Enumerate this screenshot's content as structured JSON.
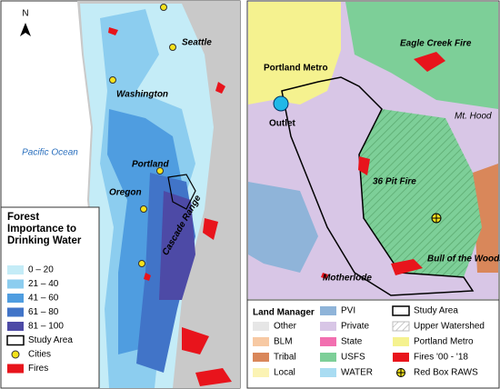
{
  "left_map": {
    "north": "N",
    "labels": {
      "seattle": "Seattle",
      "washington": "Washington",
      "ocean": "Pacific Ocean",
      "portland": "Portland",
      "oregon": "Oregon",
      "range": "Cascade Range"
    },
    "legend": {
      "title": "Forest Importance to Drinking Water",
      "items": [
        {
          "label": "0 – 20",
          "color": "#c4ecf7",
          "style": "swatch"
        },
        {
          "label": "21 – 40",
          "color": "#8ccdef",
          "style": "swatch"
        },
        {
          "label": "41 – 60",
          "color": "#4f9de0",
          "style": "swatch"
        },
        {
          "label": "61 – 80",
          "color": "#4174c8",
          "style": "swatch"
        },
        {
          "label": "81 – 100",
          "color": "#4d4aa6",
          "style": "swatch"
        },
        {
          "label": "Study Area",
          "color": "#000000",
          "style": "outline"
        },
        {
          "label": "Cities",
          "color": "#f5e21b",
          "style": "dot"
        },
        {
          "label": "Fires",
          "color": "#e8141c",
          "style": "swatch"
        }
      ]
    }
  },
  "right_map": {
    "labels": {
      "metro": "Portland Metro",
      "eagle": "Eagle Creek Fire",
      "hood": "Mt. Hood",
      "outlet": "Outlet",
      "pit": "36 Pit Fire",
      "bull": "Bull of the Woods",
      "mother": "Motherlode"
    },
    "legend": {
      "title": "Land Manager",
      "columns": [
        [
          {
            "label": "Other",
            "color": "#e6e6e6",
            "style": "swatch"
          },
          {
            "label": "BLM",
            "color": "#f7c9a3",
            "style": "swatch"
          },
          {
            "label": "Tribal",
            "color": "#d9875a",
            "style": "swatch"
          },
          {
            "label": "Local",
            "color": "#fbf3b4",
            "style": "swatch"
          }
        ],
        [
          {
            "label": "PVI",
            "color": "#8fb4d9",
            "style": "swatch"
          },
          {
            "label": "Private",
            "color": "#d8c6e6",
            "style": "swatch"
          },
          {
            "label": "State",
            "color": "#f26fb0",
            "style": "swatch"
          },
          {
            "label": "USFS",
            "color": "#7dcf98",
            "style": "swatch"
          },
          {
            "label": "WATER",
            "color": "#a9dcf2",
            "style": "swatch"
          }
        ],
        [
          {
            "label": "Study Area",
            "color": "#000000",
            "style": "outline"
          },
          {
            "label": "Upper Watershed",
            "color": "#999999",
            "style": "hatch"
          },
          {
            "label": "Portland Metro",
            "color": "#f5f28f",
            "style": "swatch"
          },
          {
            "label": "Fires '00 - '18",
            "color": "#e8141c",
            "style": "swatch"
          },
          {
            "label": "Red Box RAWS",
            "color": "#f5e21b",
            "style": "raws"
          }
        ]
      ]
    }
  }
}
